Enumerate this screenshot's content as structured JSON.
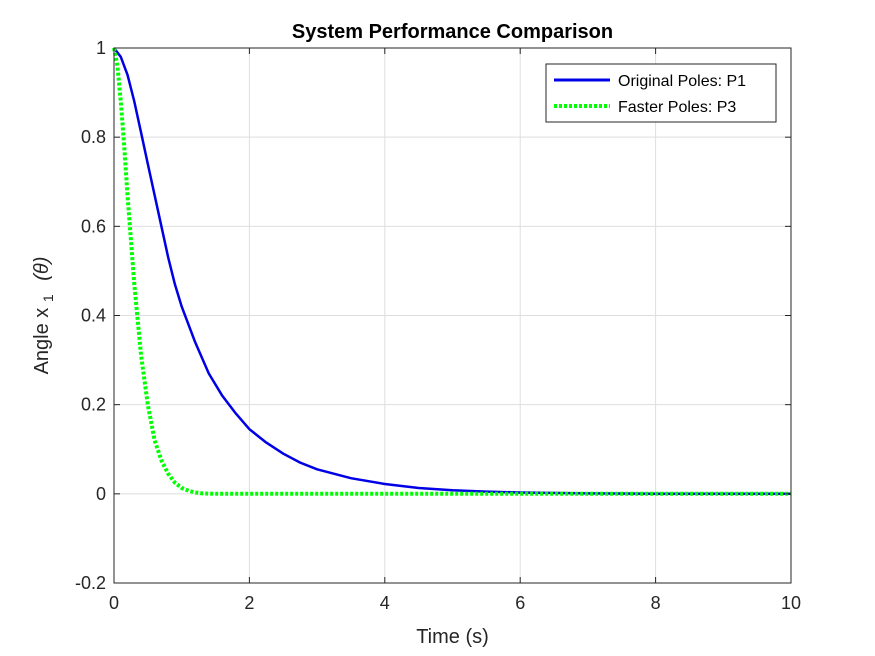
{
  "chart_data": {
    "type": "line",
    "title": "System Performance Comparison",
    "xlabel": "Time (s)",
    "ylabel_main": "Angle x",
    "ylabel_subscript": "1",
    "ylabel_suffix": "(θ)",
    "xlim": [
      0,
      10
    ],
    "ylim": [
      -0.2,
      1
    ],
    "xticks": [
      0,
      2,
      4,
      6,
      8,
      10
    ],
    "xtick_labels": [
      "0",
      "2",
      "4",
      "6",
      "8",
      "10"
    ],
    "yticks": [
      -0.2,
      0,
      0.2,
      0.4,
      0.6,
      0.8,
      1
    ],
    "ytick_labels": [
      "-0.2",
      "0",
      "0.2",
      "0.4",
      "0.6",
      "0.8",
      "1"
    ],
    "grid": true,
    "legend_position": "top-right",
    "series": [
      {
        "name": "Original Poles: P1",
        "color": "#0000e6",
        "style": "solid",
        "x": [
          0,
          0.1,
          0.2,
          0.3,
          0.4,
          0.5,
          0.6,
          0.7,
          0.8,
          0.9,
          1.0,
          1.2,
          1.4,
          1.6,
          1.8,
          2.0,
          2.25,
          2.5,
          2.75,
          3.0,
          3.5,
          4.0,
          4.5,
          5.0,
          5.5,
          6.0,
          7.0,
          8.0,
          9.0,
          10.0
        ],
        "y": [
          1.0,
          0.98,
          0.94,
          0.88,
          0.81,
          0.74,
          0.67,
          0.6,
          0.53,
          0.47,
          0.42,
          0.34,
          0.27,
          0.22,
          0.18,
          0.145,
          0.115,
          0.09,
          0.07,
          0.055,
          0.035,
          0.022,
          0.013,
          0.008,
          0.005,
          0.003,
          0.001,
          0.0,
          0.0,
          0.0
        ]
      },
      {
        "name": "Faster Poles: P3",
        "color": "#00ff00",
        "style": "dotted",
        "x": [
          0,
          0.05,
          0.1,
          0.15,
          0.2,
          0.25,
          0.3,
          0.35,
          0.4,
          0.5,
          0.6,
          0.7,
          0.8,
          0.9,
          1.0,
          1.1,
          1.2,
          1.3,
          1.5,
          2.0,
          3.0,
          4.0,
          6.0,
          8.0,
          10.0
        ],
        "y": [
          1.0,
          0.96,
          0.88,
          0.78,
          0.67,
          0.57,
          0.47,
          0.39,
          0.31,
          0.2,
          0.12,
          0.075,
          0.045,
          0.025,
          0.013,
          0.007,
          0.003,
          0.001,
          0.0,
          0.0,
          0.0,
          0.0,
          0.0,
          0.0,
          0.0
        ]
      }
    ]
  }
}
